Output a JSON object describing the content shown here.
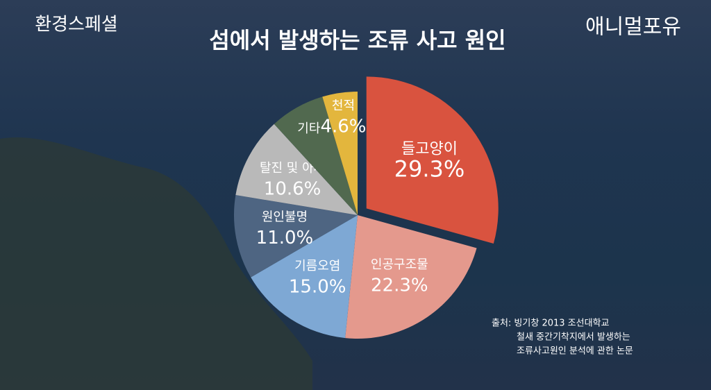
{
  "overlay": {
    "brand_left": "환경스페셜",
    "brand_right": "애니멀포유"
  },
  "chart_data": {
    "type": "pie",
    "title": "섬에서 발생하는 조류 사고 원인",
    "categories": [
      "들고양이",
      "인공구조물",
      "기름오염",
      "원인불명",
      "탈진 및 아사",
      "기타",
      "천적"
    ],
    "values": [
      29.3,
      22.3,
      15.0,
      11.0,
      10.6,
      7.2,
      4.6
    ],
    "value_labels": [
      "29.3%",
      "22.3%",
      "15.0%",
      "11.0%",
      "10.6%",
      null,
      "4.6%"
    ],
    "colors": [
      "#d9533f",
      "#e4998d",
      "#7ea8d4",
      "#4e6582",
      "#b9b9b9",
      "#51694f",
      "#e3b63d"
    ],
    "source": [
      "출처: 빙기창 2013 조선대학교",
      "철새 중간기착지에서 발생하는",
      "조류사고원인 분석에 관한 논문"
    ]
  }
}
